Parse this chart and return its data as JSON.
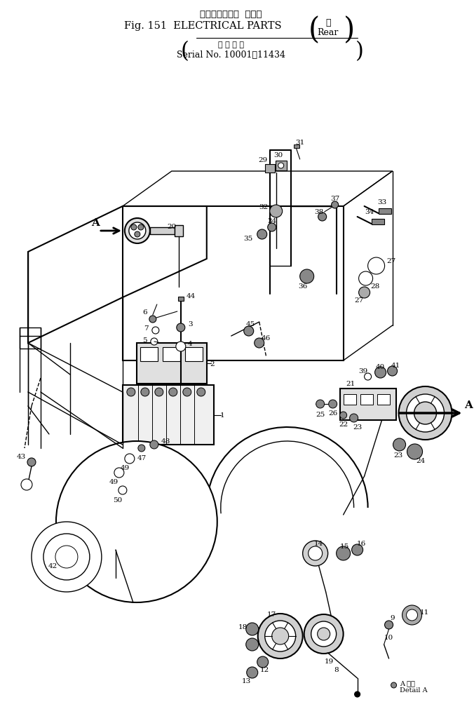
{
  "title_jp": "エレクトリカル  パーツ",
  "title_en": "Fig. 151  ELECTRICAL PARTS",
  "bracket_jp": "後",
  "bracket_en": "Rear",
  "subtitle_jp": "適 用 号 機",
  "subtitle_en": "Serial No. 10001～11434",
  "detail_jp": "A 詳細",
  "detail_en": "Detail A",
  "bg": "#ffffff",
  "fg": "#000000"
}
